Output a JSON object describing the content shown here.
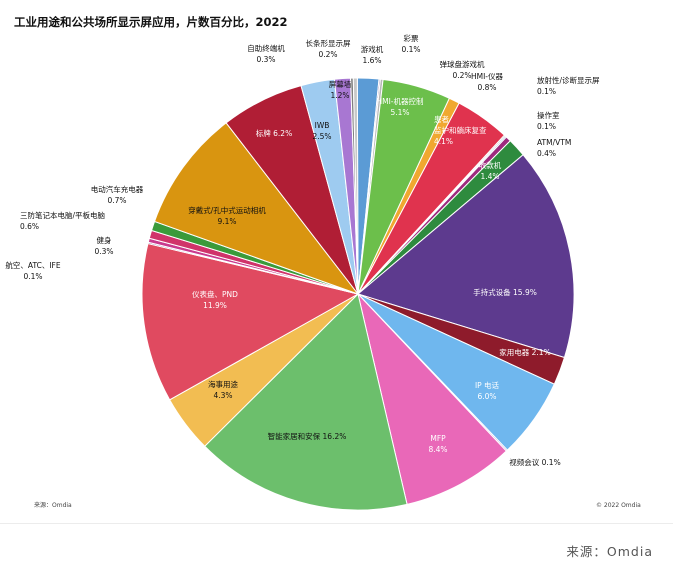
{
  "chart_data": {
    "type": "pie",
    "title": "工业用途和公共场所显示屏应用，片数百分比，2022",
    "source_note": "来源：Omdia",
    "copyright": "© 2022 Omdia",
    "slices": [
      {
        "label": "游戏机",
        "value": 1.6,
        "color": "#5b9bd5",
        "text": "游戏机\n1.6%"
      },
      {
        "label": "彩票",
        "value": 0.1,
        "color": "#8064a2",
        "text": "彩票\n0.1%"
      },
      {
        "label": "弹球盘游戏机",
        "value": 0.2,
        "color": "#b7b7b7",
        "text": "弹球盘游戏机\n0.2%"
      },
      {
        "label": "HMI-机器控制",
        "value": 5.1,
        "color": "#6cbf4b",
        "text": "HMI-机器控制\n5.1%"
      },
      {
        "label": "HMI-仪器",
        "value": 0.8,
        "color": "#f0a830",
        "text": "HMI-仪器\n0.8%"
      },
      {
        "label": "患者监护和躺床复查",
        "value": 4.1,
        "color": "#e0334e",
        "text": "患者\n监护和躺床复查\n4.1%"
      },
      {
        "label": "放射性/诊断显示屏",
        "value": 0.1,
        "color": "#a9a9a9",
        "text": "放射性/诊断显示屏\n0.1%"
      },
      {
        "label": "操作室",
        "value": 0.1,
        "color": "#4a7fc1",
        "text": "操作室\n0.1%"
      },
      {
        "label": "ATM/VTM",
        "value": 0.4,
        "color": "#9d2a7e",
        "text": "ATM/VTM\n0.4%"
      },
      {
        "label": "收款机",
        "value": 1.4,
        "color": "#2e8b3e",
        "text": "收款机\n1.4%"
      },
      {
        "label": "手持式设备",
        "value": 15.9,
        "color": "#5d3a8e",
        "text": "手持式设备 15.9%"
      },
      {
        "label": "家用电器",
        "value": 2.1,
        "color": "#8e1b2b",
        "text": "家用电器 2.1%"
      },
      {
        "label": "IP电话",
        "value": 6.0,
        "color": "#6fb7ee",
        "text": "IP 电话\n6.0%"
      },
      {
        "label": "视频会议",
        "value": 0.1,
        "color": "#a47fc8",
        "text": "视频会议 0.1%"
      },
      {
        "label": "MFP",
        "value": 8.4,
        "color": "#e968b8",
        "text": "MFP\n8.4%"
      },
      {
        "label": "智能家居和安保",
        "value": 16.2,
        "color": "#6cbf6c",
        "text": "智能家居和安保 16.2%"
      },
      {
        "label": "海事用途",
        "value": 4.3,
        "color": "#f2bd52",
        "text": "海事用途\n4.3%"
      },
      {
        "label": "仪表盘、PND",
        "value": 11.9,
        "color": "#e04a60",
        "text": "仪表盘、PND\n11.9%"
      },
      {
        "label": "航空、ATC、IFE",
        "value": 0.1,
        "color": "#8064a2",
        "text": "航空、ATC、IFE\n0.1%"
      },
      {
        "label": "健身",
        "value": 0.3,
        "color": "#c93a8e",
        "text": "健身\n0.3%"
      },
      {
        "label": "三防笔记本电脑/平板电脑",
        "value": 0.6,
        "color": "#d0336a",
        "text": "三防笔记本电脑/平板电脑\n0.6%"
      },
      {
        "label": "电动汽车充电器",
        "value": 0.7,
        "color": "#3a9a3a",
        "text": "电动汽车充电器\n0.7%"
      },
      {
        "label": "穿戴式/孔中式运动相机",
        "value": 9.1,
        "color": "#d99510",
        "text": "穿戴式/孔中式运动相机\n9.1%"
      },
      {
        "label": "标牌",
        "value": 6.2,
        "color": "#b01e35",
        "text": "标牌 6.2%"
      },
      {
        "label": "IWB",
        "value": 2.5,
        "color": "#9ecbf0",
        "text": "IWB\n2.5%"
      },
      {
        "label": "屏幕墙",
        "value": 1.2,
        "color": "#a877d2",
        "text": "屏幕墙\n1.2%"
      },
      {
        "label": "长条形显示屏",
        "value": 0.2,
        "color": "#7f7f7f",
        "text": "长条形显示屏\n0.2%"
      },
      {
        "label": "自助终端机",
        "value": 0.3,
        "color": "#c8c8c8",
        "text": "自助终端机\n0.3%"
      }
    ]
  },
  "footer": {
    "source": "来源：Omdia"
  }
}
